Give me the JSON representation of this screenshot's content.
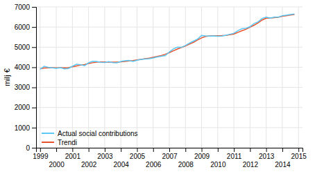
{
  "chart_data": {
    "type": "line",
    "ylabel": "milj €",
    "xlim": [
      1998.75,
      2015.25
    ],
    "ylim": [
      0,
      7000
    ],
    "xticks": [
      1999,
      2000,
      2001,
      2002,
      2003,
      2004,
      2005,
      2006,
      2007,
      2008,
      2009,
      2010,
      2011,
      2012,
      2013,
      2014,
      2015
    ],
    "yticks": [
      0,
      1000,
      2000,
      3000,
      4000,
      5000,
      6000,
      7000
    ],
    "grid": true,
    "legend": "lower left",
    "x": [
      1999.0,
      1999.25,
      1999.5,
      1999.75,
      2000.0,
      2000.25,
      2000.5,
      2000.75,
      2001.0,
      2001.25,
      2001.5,
      2001.75,
      2002.0,
      2002.25,
      2002.5,
      2002.75,
      2003.0,
      2003.25,
      2003.5,
      2003.75,
      2004.0,
      2004.25,
      2004.5,
      2004.75,
      2005.0,
      2005.25,
      2005.5,
      2005.75,
      2006.0,
      2006.25,
      2006.5,
      2006.75,
      2007.0,
      2007.25,
      2007.5,
      2007.75,
      2008.0,
      2008.25,
      2008.5,
      2008.75,
      2009.0,
      2009.25,
      2009.5,
      2009.75,
      2010.0,
      2010.25,
      2010.5,
      2010.75,
      2011.0,
      2011.25,
      2011.5,
      2011.75,
      2012.0,
      2012.25,
      2012.5,
      2012.75,
      2013.0,
      2013.25,
      2013.5,
      2013.75,
      2014.0,
      2014.25,
      2014.5,
      2014.75
    ],
    "series": [
      {
        "name": "Actual social contributions",
        "color": "#5BC8F5",
        "values": [
          3900,
          4050,
          4000,
          3970,
          3950,
          3980,
          3920,
          3940,
          4050,
          4150,
          4130,
          4080,
          4220,
          4300,
          4290,
          4250,
          4240,
          4280,
          4230,
          4220,
          4290,
          4320,
          4340,
          4290,
          4350,
          4390,
          4410,
          4430,
          4460,
          4510,
          4550,
          4580,
          4760,
          4910,
          5000,
          4990,
          5080,
          5200,
          5300,
          5400,
          5580,
          5560,
          5550,
          5560,
          5540,
          5550,
          5590,
          5640,
          5690,
          5820,
          5920,
          5940,
          6020,
          6170,
          6260,
          6430,
          6490,
          6440,
          6490,
          6490,
          6560,
          6590,
          6620,
          6650
        ]
      },
      {
        "name": "Trendi",
        "color": "#E8502A",
        "values": [
          3930,
          3960,
          3975,
          3980,
          3975,
          3978,
          3972,
          3978,
          4020,
          4065,
          4105,
          4135,
          4185,
          4225,
          4255,
          4265,
          4263,
          4258,
          4258,
          4258,
          4273,
          4293,
          4315,
          4335,
          4365,
          4395,
          4425,
          4455,
          4495,
          4538,
          4585,
          4645,
          4725,
          4815,
          4905,
          4985,
          5060,
          5150,
          5240,
          5360,
          5460,
          5530,
          5555,
          5565,
          5568,
          5572,
          5585,
          5615,
          5655,
          5735,
          5815,
          5890,
          5990,
          6090,
          6210,
          6350,
          6440,
          6445,
          6465,
          6485,
          6535,
          6565,
          6595,
          6625
        ]
      }
    ]
  }
}
